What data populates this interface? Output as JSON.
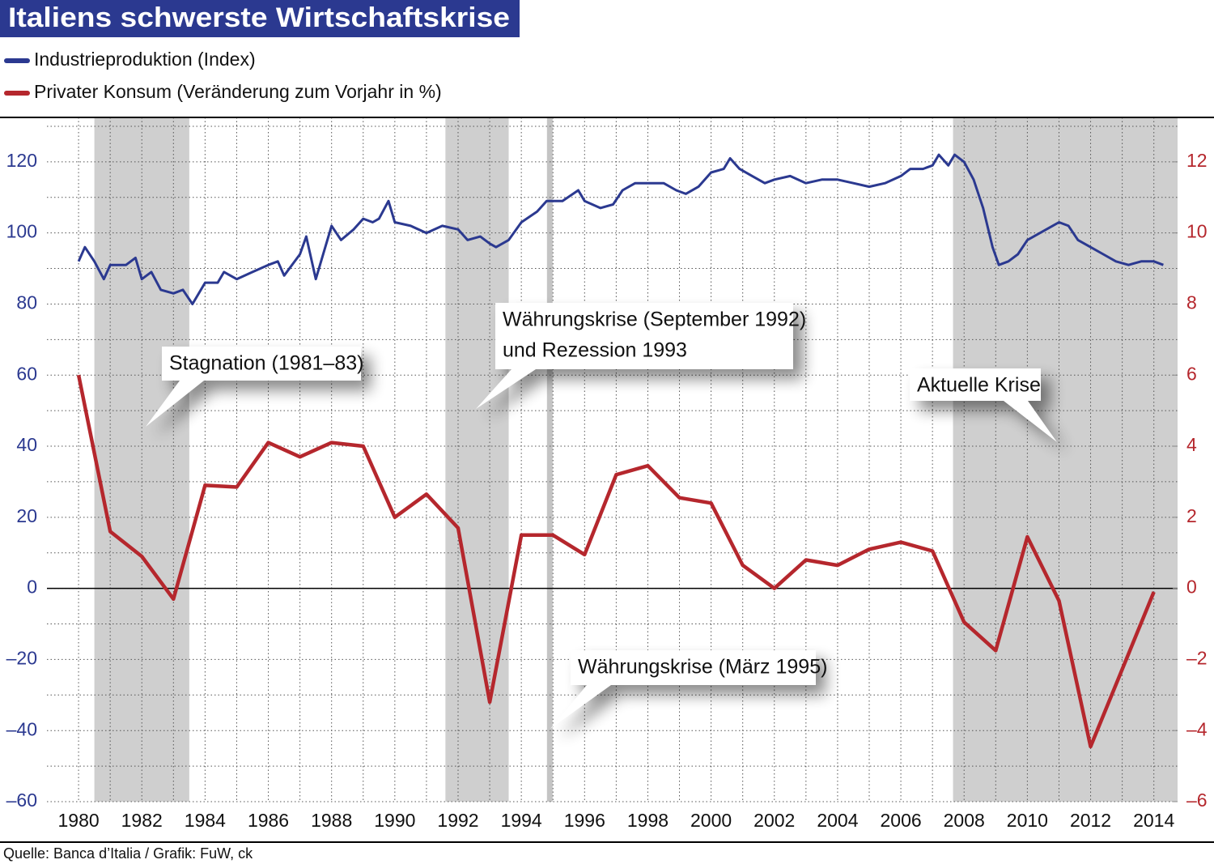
{
  "chart_data": {
    "type": "line",
    "title": "Italiens schwerste Wirtschaftskrise",
    "source": "Quelle: Banca d’Italia / Grafik: FuW, ck",
    "xlim": [
      1979,
      2014.75
    ],
    "xticks": [
      1980,
      1982,
      1984,
      1986,
      1988,
      1990,
      1992,
      1994,
      1996,
      1998,
      2000,
      2002,
      2004,
      2006,
      2008,
      2010,
      2012,
      2014
    ],
    "ylim": [
      -60,
      132.5
    ],
    "yticks": [
      {
        "value": -60,
        "label": "–60"
      },
      {
        "value": -40,
        "label": "–40"
      },
      {
        "value": -20,
        "label": "–20"
      },
      0,
      20,
      40,
      60,
      80,
      100,
      120
    ],
    "y2lim": [
      -6,
      13.25
    ],
    "y2ticks": [
      {
        "value": -6,
        "label": "–6"
      },
      {
        "value": -4,
        "label": "–4"
      },
      {
        "value": -2,
        "label": "–2"
      },
      0,
      2,
      4,
      6,
      8,
      10,
      12
    ],
    "grid": true,
    "shaded_periods": [
      [
        1980.5,
        1983.5
      ],
      [
        1991.6,
        1993.6
      ],
      [
        2007.65,
        2014.75
      ]
    ],
    "marker_line": 1994.9,
    "series": [
      {
        "name": "Industrieproduktion (Index)",
        "color": "#2b3990",
        "axis": "y",
        "x": [
          1980.0,
          1980.2,
          1980.5,
          1980.8,
          1981.0,
          1981.5,
          1981.8,
          1982.0,
          1982.3,
          1982.6,
          1983.0,
          1983.3,
          1983.6,
          1984.0,
          1984.4,
          1984.6,
          1985.0,
          1985.5,
          1986.0,
          1986.3,
          1986.5,
          1987.0,
          1987.2,
          1987.5,
          1987.8,
          1988.0,
          1988.3,
          1988.7,
          1989.0,
          1989.3,
          1989.5,
          1989.8,
          1990.0,
          1990.5,
          1991.0,
          1991.5,
          1992.0,
          1992.3,
          1992.7,
          1993.0,
          1993.2,
          1993.6,
          1994.0,
          1994.5,
          1994.8,
          1995.3,
          1995.8,
          1996.0,
          1996.5,
          1996.9,
          1997.2,
          1997.6,
          1998.0,
          1998.5,
          1998.9,
          1999.2,
          1999.6,
          2000.0,
          2000.4,
          2000.6,
          2000.9,
          2001.3,
          2001.7,
          2002.0,
          2002.5,
          2003.0,
          2003.5,
          2004.0,
          2004.5,
          2005.0,
          2005.5,
          2006.0,
          2006.3,
          2006.7,
          2007.0,
          2007.2,
          2007.5,
          2007.7,
          2008.0,
          2008.3,
          2008.6,
          2008.9,
          2009.1,
          2009.4,
          2009.7,
          2010.0,
          2010.4,
          2010.8,
          2011.0,
          2011.3,
          2011.6,
          2012.0,
          2012.4,
          2012.8,
          2013.2,
          2013.6,
          2014.0,
          2014.3
        ],
        "values": [
          92,
          96,
          92,
          87,
          91,
          91,
          93,
          87,
          89,
          84,
          83,
          84,
          80,
          86,
          86,
          89,
          87,
          89,
          91,
          92,
          88,
          94,
          99,
          87,
          96,
          102,
          98,
          101,
          104,
          103,
          104,
          109,
          103,
          102,
          100,
          102,
          101,
          98,
          99,
          97,
          96,
          98,
          103,
          106,
          109,
          109,
          112,
          109,
          107,
          108,
          112,
          114,
          114,
          114,
          112,
          111,
          113,
          117,
          118,
          121,
          118,
          116,
          114,
          115,
          116,
          114,
          115,
          115,
          114,
          113,
          114,
          116,
          118,
          118,
          119,
          122,
          119,
          122,
          120,
          115,
          107,
          96,
          91,
          92,
          94,
          98,
          100,
          102,
          103,
          102,
          98,
          96,
          94,
          92,
          91,
          92,
          92,
          91
        ]
      },
      {
        "name": "Privater Konsum (Veränderung zum Vorjahr in %)",
        "color": "#b5272d",
        "axis": "y2",
        "x": [
          1980,
          1981,
          1982,
          1983,
          1984,
          1985,
          1986,
          1987,
          1988,
          1989,
          1990,
          1991,
          1992,
          1993,
          1994,
          1995,
          1996,
          1997,
          1998,
          1999,
          2000,
          2001,
          2002,
          2003,
          2004,
          2005,
          2006,
          2007,
          2008,
          2009,
          2010,
          2011,
          2012,
          2014
        ],
        "values": [
          6.0,
          1.6,
          0.9,
          -0.3,
          2.9,
          2.85,
          4.1,
          3.7,
          4.1,
          4.0,
          2.0,
          2.65,
          1.7,
          -3.2,
          1.5,
          1.5,
          0.95,
          3.2,
          3.45,
          2.55,
          2.4,
          0.65,
          0.0,
          0.8,
          0.65,
          1.1,
          1.3,
          1.05,
          -0.95,
          -1.75,
          1.45,
          -0.35,
          -4.45,
          -0.1
        ]
      }
    ],
    "annotations": [
      [
        "Stagnation (1981–83)"
      ],
      [
        "Währungskrise (September 1992)",
        "und Rezession 1993"
      ],
      [
        "Aktuelle Krise"
      ],
      [
        "Währungskrise (März 1995)"
      ]
    ]
  }
}
